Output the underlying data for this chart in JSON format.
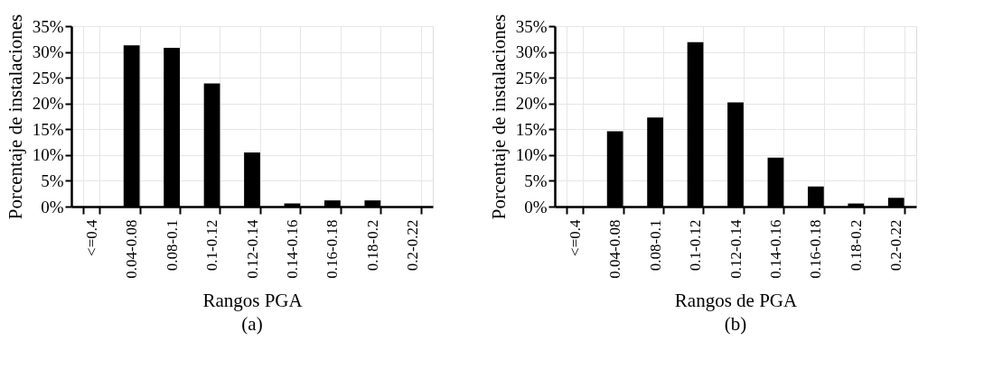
{
  "chart_data": [
    {
      "type": "bar",
      "title": "(a)",
      "xlabel": "Rangos PGA",
      "ylabel": "Porcentaje de instalaciones",
      "categories": [
        "<=0.4",
        "0.04-0.08",
        "0.08-0.1",
        "0.1-0.12",
        "0.12-0.14",
        "0.14-0.16",
        "0.16-0.18",
        "0.18-0.2",
        "0.2-0.22"
      ],
      "series": [
        {
          "color": "#000000",
          "values": [
            0,
            31.3,
            30.8,
            23.9,
            10.5,
            0.6,
            1.2,
            1.2,
            0
          ]
        }
      ],
      "ylim": [
        0,
        35
      ],
      "yticks": [
        {
          "value": 0,
          "label": "0%"
        },
        {
          "value": 5,
          "label": "5%"
        },
        {
          "value": 10,
          "label": "10%"
        },
        {
          "value": 15,
          "label": "15%"
        },
        {
          "value": 20,
          "label": "20%"
        },
        {
          "value": 25,
          "label": "25%"
        },
        {
          "value": 30,
          "label": "30%"
        },
        {
          "value": 35,
          "label": "35%"
        }
      ],
      "grid": true
    },
    {
      "type": "bar",
      "title": "(b)",
      "xlabel": "Rangos de PGA",
      "ylabel": "Porcentaje de instalaciones",
      "categories": [
        "<=0.4",
        "0.04-0.08",
        "0.08-0.1",
        "0.1-0.12",
        "0.12-0.14",
        "0.14-0.16",
        "0.16-0.18",
        "0.18-0.2",
        "0.2-0.22"
      ],
      "series": [
        {
          "color": "#000000",
          "values": [
            0,
            14.6,
            17.3,
            31.9,
            20.2,
            9.5,
            3.9,
            0.6,
            1.7
          ]
        }
      ],
      "ylim": [
        0,
        35
      ],
      "yticks": [
        {
          "value": 0,
          "label": "0%"
        },
        {
          "value": 5,
          "label": "5%"
        },
        {
          "value": 10,
          "label": "10%"
        },
        {
          "value": 15,
          "label": "15%"
        },
        {
          "value": 20,
          "label": "20%"
        },
        {
          "value": 25,
          "label": "25%"
        },
        {
          "value": 30,
          "label": "30%"
        },
        {
          "value": 35,
          "label": "35%"
        }
      ],
      "grid": true
    }
  ]
}
